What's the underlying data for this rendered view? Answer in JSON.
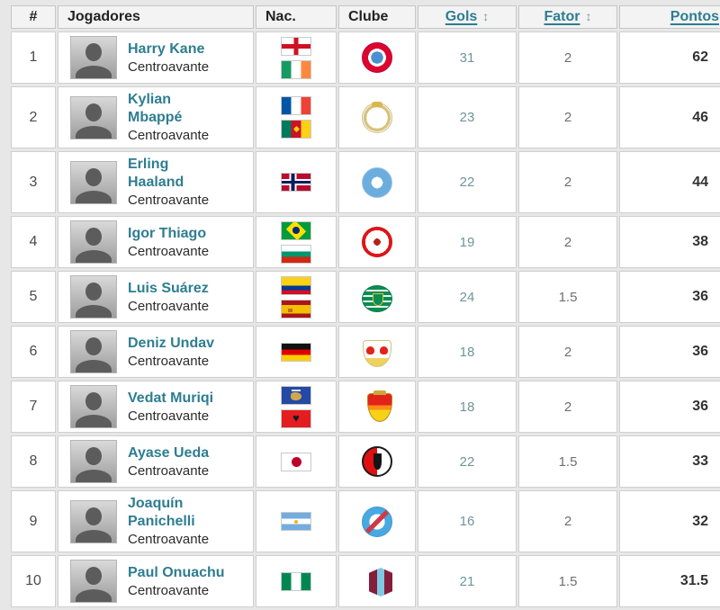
{
  "table": {
    "sort_icon": "↕",
    "columns": {
      "rank": "#",
      "player": "Jogadores",
      "nationality": "Nac.",
      "club": "Clube",
      "goals": "Gols",
      "factor": "Fator",
      "points": "Pontos"
    },
    "rows": [
      {
        "rank": "1",
        "name": "Harry Kane",
        "position": "Centroavante",
        "flags": [
          "england",
          "ireland"
        ],
        "club": "bayern",
        "gols": "31",
        "fator": "2",
        "pontos": "62"
      },
      {
        "rank": "2",
        "name": "Kylian Mbappé",
        "position": "Centroavante",
        "flags": [
          "france",
          "cameroon"
        ],
        "club": "real-madrid",
        "gols": "23",
        "fator": "2",
        "pontos": "46"
      },
      {
        "rank": "3",
        "name": "Erling Haaland",
        "position": "Centroavante",
        "flags": [
          "norway"
        ],
        "club": "man-city",
        "gols": "22",
        "fator": "2",
        "pontos": "44"
      },
      {
        "rank": "4",
        "name": "Igor Thiago",
        "position": "Centroavante",
        "flags": [
          "brazil",
          "bulgaria"
        ],
        "club": "brentford",
        "gols": "19",
        "fator": "2",
        "pontos": "38"
      },
      {
        "rank": "5",
        "name": "Luis Suárez",
        "position": "Centroavante",
        "flags": [
          "colombia",
          "spain"
        ],
        "club": "sporting",
        "gols": "24",
        "fator": "1.5",
        "pontos": "36"
      },
      {
        "rank": "6",
        "name": "Deniz Undav",
        "position": "Centroavante",
        "flags": [
          "germany"
        ],
        "club": "stuttgart",
        "gols": "18",
        "fator": "2",
        "pontos": "36"
      },
      {
        "rank": "7",
        "name": "Vedat Muriqi",
        "position": "Centroavante",
        "flags": [
          "kosovo",
          "albania"
        ],
        "club": "mallorca",
        "gols": "18",
        "fator": "2",
        "pontos": "36"
      },
      {
        "rank": "8",
        "name": "Ayase Ueda",
        "position": "Centroavante",
        "flags": [
          "japan"
        ],
        "club": "feyenoord",
        "gols": "22",
        "fator": "1.5",
        "pontos": "33"
      },
      {
        "rank": "9",
        "name": "Joaquín Panichelli",
        "position": "Centroavante",
        "flags": [
          "argentina"
        ],
        "club": "strasbourg",
        "gols": "16",
        "fator": "2",
        "pontos": "32"
      },
      {
        "rank": "10",
        "name": "Paul Onuachu",
        "position": "Centroavante",
        "flags": [
          "nigeria"
        ],
        "club": "trabzonspor",
        "gols": "21",
        "fator": "1.5",
        "pontos": "31.5"
      }
    ]
  },
  "colors": {
    "link_teal": "#2e7d91",
    "header_bg": "#f3f3f3",
    "page_bg": "#e7e7e7",
    "points_text": "#323232",
    "goals_text": "#6e959b"
  }
}
